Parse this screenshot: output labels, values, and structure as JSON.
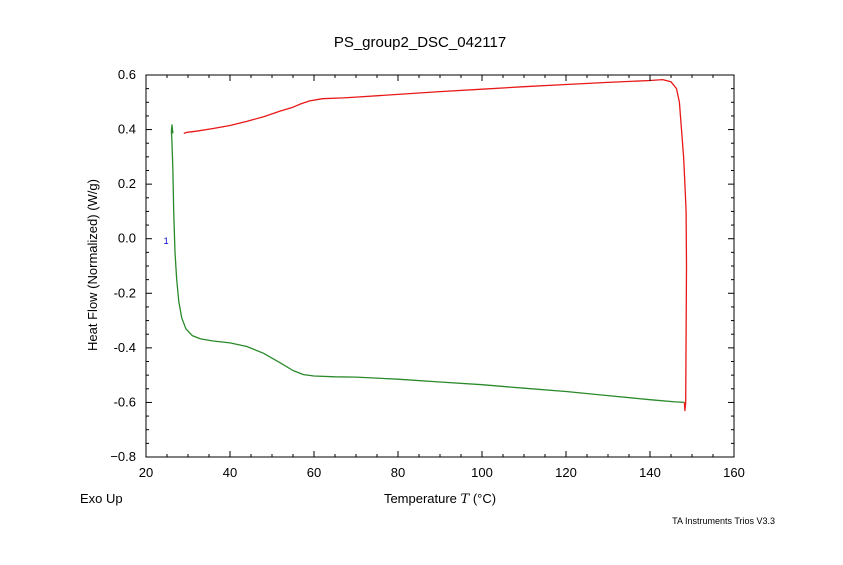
{
  "chart_data": {
    "type": "line",
    "title": "PS_group2_DSC_042117",
    "xlabel_prefix": "Temperature ",
    "xlabel_symbol": "T",
    "xlabel_unit": " (°C)",
    "ylabel": "Heat Flow (Normalized)  (W/g)",
    "xlim": [
      20,
      160
    ],
    "ylim": [
      -0.8,
      0.6
    ],
    "x_ticks": [
      20,
      40,
      60,
      80,
      100,
      120,
      140,
      160
    ],
    "y_ticks": [
      -0.8,
      -0.6,
      -0.4,
      -0.2,
      0.0,
      0.2,
      0.4,
      0.6
    ],
    "y_tick_labels": [
      "−0.8",
      "-0.6",
      "-0.4",
      "-0.2",
      "0.0",
      "0.2",
      "0.4",
      "0.6"
    ],
    "grid": false,
    "annotation": {
      "text": "1",
      "x": 24.8,
      "y": -0.005,
      "color": "#0000cc"
    },
    "series": [
      {
        "color": "#2a8a2a",
        "points": [
          [
            26.4,
            0.386
          ],
          [
            26.2,
            0.417
          ],
          [
            26.05,
            0.395
          ],
          [
            26.2,
            0.35
          ],
          [
            26.4,
            0.25
          ],
          [
            26.6,
            0.1
          ],
          [
            26.9,
            -0.05
          ],
          [
            27.3,
            -0.15
          ],
          [
            27.8,
            -0.23
          ],
          [
            28.5,
            -0.29
          ],
          [
            29.5,
            -0.33
          ],
          [
            31,
            -0.355
          ],
          [
            33,
            -0.367
          ],
          [
            36,
            -0.375
          ],
          [
            40,
            -0.382
          ],
          [
            44,
            -0.395
          ],
          [
            48,
            -0.42
          ],
          [
            52,
            -0.455
          ],
          [
            55,
            -0.483
          ],
          [
            57.5,
            -0.498
          ],
          [
            60,
            -0.503
          ],
          [
            65,
            -0.506
          ],
          [
            70,
            -0.507
          ],
          [
            80,
            -0.515
          ],
          [
            90,
            -0.525
          ],
          [
            100,
            -0.535
          ],
          [
            110,
            -0.548
          ],
          [
            120,
            -0.56
          ],
          [
            130,
            -0.575
          ],
          [
            140,
            -0.59
          ],
          [
            146,
            -0.598
          ],
          [
            148.2,
            -0.6
          ]
        ]
      },
      {
        "color": "#e81818",
        "points": [
          [
            148.2,
            -0.6
          ],
          [
            148.3,
            -0.63
          ],
          [
            148.5,
            -0.6
          ],
          [
            148.7,
            -0.1
          ],
          [
            148.6,
            0.1
          ],
          [
            148.3,
            0.2
          ],
          [
            148,
            0.3
          ],
          [
            147.5,
            0.4
          ],
          [
            147,
            0.5
          ],
          [
            146.3,
            0.55
          ],
          [
            145,
            0.575
          ],
          [
            143,
            0.583
          ],
          [
            140,
            0.58
          ],
          [
            130,
            0.573
          ],
          [
            120,
            0.565
          ],
          [
            110,
            0.557
          ],
          [
            100,
            0.548
          ],
          [
            90,
            0.539
          ],
          [
            80,
            0.529
          ],
          [
            70,
            0.519
          ],
          [
            67,
            0.516
          ],
          [
            62,
            0.513
          ],
          [
            59,
            0.505
          ],
          [
            58,
            0.5
          ],
          [
            57,
            0.495
          ],
          [
            55,
            0.482
          ],
          [
            52,
            0.468
          ],
          [
            48,
            0.447
          ],
          [
            44,
            0.43
          ],
          [
            40,
            0.415
          ],
          [
            36,
            0.404
          ],
          [
            32,
            0.394
          ],
          [
            29.8,
            0.39
          ],
          [
            29,
            0.386
          ]
        ]
      }
    ]
  },
  "footer": {
    "exo": "Exo Up",
    "software": "TA Instruments Trios V3.3"
  }
}
